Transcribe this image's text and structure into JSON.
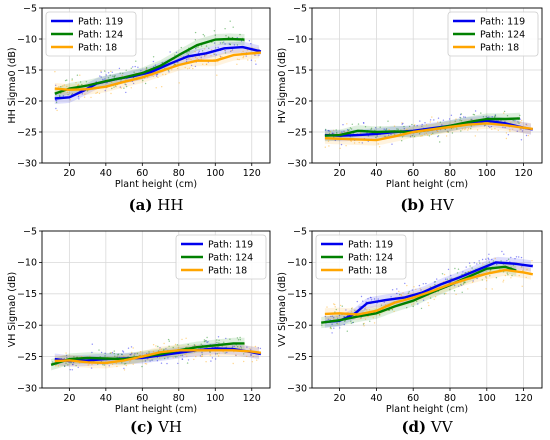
{
  "colors": {
    "p119": "#0000ee",
    "p124": "#008000",
    "p18": "#ffa500",
    "grid": "#d9d9d9",
    "axis": "#000000"
  },
  "chart_data": [
    {
      "type": "line",
      "panel_letter": "(a)",
      "panel_name": "HH",
      "xlabel": "Plant height (cm)",
      "ylabel": "HH Sigma0 (dB)",
      "xlim": [
        5,
        130
      ],
      "ylim": [
        -30,
        -5
      ],
      "xticks": [
        20,
        40,
        60,
        80,
        100,
        120
      ],
      "yticks": [
        -30,
        -25,
        -20,
        -15,
        -10,
        -5
      ],
      "grid": true,
      "legend_position": "top-left",
      "series": [
        {
          "name": "Path: 119",
          "color": "#0000ee",
          "x": [
            12,
            20,
            28,
            35,
            45,
            55,
            65,
            75,
            85,
            95,
            105,
            115,
            125
          ],
          "y": [
            -19.6,
            -19.4,
            -18.3,
            -17.2,
            -16.5,
            -16.0,
            -15.3,
            -14.0,
            -12.8,
            -12.3,
            -11.5,
            -11.3,
            -12.0
          ]
        },
        {
          "name": "Path: 124",
          "color": "#008000",
          "x": [
            12,
            20,
            30,
            40,
            50,
            60,
            70,
            80,
            90,
            100,
            108,
            116
          ],
          "y": [
            -18.8,
            -18.0,
            -17.5,
            -16.8,
            -16.2,
            -15.5,
            -14.3,
            -12.6,
            -11.0,
            -10.1,
            -10.0,
            -10.1
          ]
        },
        {
          "name": "Path: 18",
          "color": "#ffa500",
          "x": [
            12,
            20,
            30,
            40,
            50,
            60,
            70,
            80,
            90,
            100,
            110,
            120,
            125
          ],
          "y": [
            -18.0,
            -18.2,
            -18.1,
            -17.7,
            -16.9,
            -16.2,
            -15.2,
            -14.2,
            -13.5,
            -13.5,
            -12.6,
            -12.3,
            -12.2
          ]
        }
      ]
    },
    {
      "type": "line",
      "panel_letter": "(b)",
      "panel_name": "HV",
      "xlabel": "Plant height (cm)",
      "ylabel": "HV Sigma0 (dB)",
      "xlim": [
        5,
        130
      ],
      "ylim": [
        -30,
        -5
      ],
      "xticks": [
        20,
        40,
        60,
        80,
        100,
        120
      ],
      "yticks": [
        -30,
        -25,
        -20,
        -15,
        -10,
        -5
      ],
      "grid": true,
      "legend_position": "top-right",
      "series": [
        {
          "name": "Path: 119",
          "color": "#0000ee",
          "x": [
            12,
            20,
            30,
            40,
            50,
            60,
            70,
            80,
            90,
            100,
            110,
            120,
            125
          ],
          "y": [
            -25.5,
            -25.6,
            -25.5,
            -25.3,
            -25.0,
            -24.8,
            -24.4,
            -24.0,
            -23.5,
            -23.2,
            -23.6,
            -24.3,
            -24.6
          ]
        },
        {
          "name": "Path: 124",
          "color": "#008000",
          "x": [
            12,
            20,
            30,
            40,
            50,
            60,
            70,
            80,
            90,
            100,
            110,
            118
          ],
          "y": [
            -25.6,
            -25.5,
            -24.8,
            -25.0,
            -24.9,
            -25.0,
            -24.6,
            -24.0,
            -23.4,
            -22.9,
            -22.9,
            -22.8
          ]
        },
        {
          "name": "Path: 18",
          "color": "#ffa500",
          "x": [
            12,
            20,
            30,
            40,
            50,
            60,
            70,
            80,
            90,
            100,
            110,
            120,
            125
          ],
          "y": [
            -26.0,
            -26.1,
            -26.2,
            -26.3,
            -25.7,
            -25.0,
            -24.6,
            -24.2,
            -23.8,
            -23.6,
            -23.9,
            -24.3,
            -24.5
          ]
        }
      ]
    },
    {
      "type": "line",
      "panel_letter": "(c)",
      "panel_name": "VH",
      "xlabel": "Plant height (cm)",
      "ylabel": "VH Sigma0 (dB)",
      "xlim": [
        5,
        130
      ],
      "ylim": [
        -30,
        -5
      ],
      "xticks": [
        20,
        40,
        60,
        80,
        100,
        120
      ],
      "yticks": [
        -30,
        -25,
        -20,
        -15,
        -10,
        -5
      ],
      "grid": true,
      "legend_position": "top-right",
      "series": [
        {
          "name": "Path: 119",
          "color": "#0000ee",
          "x": [
            12,
            20,
            30,
            40,
            50,
            60,
            70,
            80,
            90,
            100,
            110,
            120,
            125
          ],
          "y": [
            -25.4,
            -25.7,
            -25.6,
            -25.4,
            -25.3,
            -25.2,
            -24.8,
            -24.4,
            -24.0,
            -23.7,
            -23.8,
            -24.3,
            -24.6
          ]
        },
        {
          "name": "Path: 124",
          "color": "#008000",
          "x": [
            10,
            20,
            30,
            40,
            50,
            60,
            70,
            80,
            90,
            100,
            110,
            116
          ],
          "y": [
            -26.3,
            -25.4,
            -25.2,
            -25.3,
            -25.4,
            -25.0,
            -24.6,
            -24.0,
            -23.5,
            -23.2,
            -22.9,
            -22.9
          ]
        },
        {
          "name": "Path: 18",
          "color": "#ffa500",
          "x": [
            12,
            20,
            30,
            40,
            50,
            60,
            70,
            80,
            90,
            100,
            110,
            120,
            125
          ],
          "y": [
            -25.7,
            -25.6,
            -25.9,
            -26.0,
            -25.6,
            -25.0,
            -24.3,
            -24.0,
            -24.0,
            -24.0,
            -24.0,
            -24.2,
            -24.4
          ]
        }
      ]
    },
    {
      "type": "line",
      "panel_letter": "(d)",
      "panel_name": "VV",
      "xlabel": "Plant height (cm)",
      "ylabel": "VV Sigma0 (dB)",
      "xlim": [
        5,
        130
      ],
      "ylim": [
        -30,
        -5
      ],
      "xticks": [
        20,
        40,
        60,
        80,
        100,
        120
      ],
      "yticks": [
        -30,
        -25,
        -20,
        -15,
        -10,
        -5
      ],
      "grid": true,
      "legend_position": "top-left",
      "series": [
        {
          "name": "Path: 119",
          "color": "#0000ee",
          "x": [
            12,
            20,
            28,
            35,
            45,
            55,
            65,
            75,
            85,
            95,
            105,
            115,
            125
          ],
          "y": [
            -19.5,
            -19.3,
            -18.2,
            -16.5,
            -16.0,
            -15.6,
            -14.8,
            -13.5,
            -12.4,
            -11.2,
            -10.0,
            -10.2,
            -10.6
          ]
        },
        {
          "name": "Path: 124",
          "color": "#008000",
          "x": [
            10,
            20,
            30,
            40,
            50,
            60,
            70,
            80,
            90,
            100,
            110,
            116
          ],
          "y": [
            -19.6,
            -19.2,
            -18.6,
            -18.1,
            -17.0,
            -16.1,
            -14.8,
            -13.6,
            -12.3,
            -11.0,
            -10.7,
            -11.3
          ]
        },
        {
          "name": "Path: 18",
          "color": "#ffa500",
          "x": [
            12,
            20,
            30,
            40,
            50,
            60,
            70,
            80,
            90,
            100,
            110,
            120,
            125
          ],
          "y": [
            -18.2,
            -18.1,
            -18.3,
            -17.7,
            -16.4,
            -15.6,
            -14.6,
            -13.5,
            -12.6,
            -11.8,
            -11.2,
            -11.6,
            -11.9
          ]
        }
      ]
    }
  ]
}
